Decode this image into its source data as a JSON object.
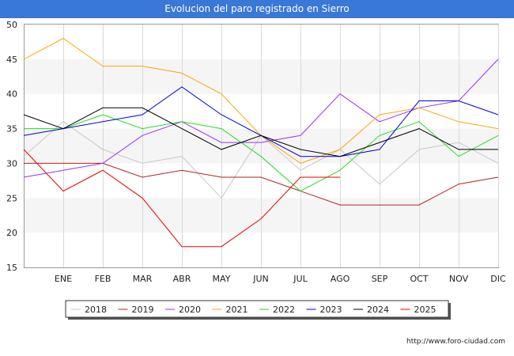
{
  "header": {
    "title": "Evolucion del paro registrado en Sierro"
  },
  "footer": {
    "source": "http://www.foro-ciudad.com"
  },
  "chart_data": {
    "type": "line",
    "title": "Evolucion del paro registrado en Sierro",
    "xlabel": "",
    "ylabel": "",
    "categories": [
      "DIC_prev",
      "ENE",
      "FEB",
      "MAR",
      "ABR",
      "MAY",
      "JUN",
      "JUL",
      "AGO",
      "SEP",
      "OCT",
      "NOV",
      "DIC"
    ],
    "xtick_labels": [
      "ENE",
      "FEB",
      "MAR",
      "ABR",
      "MAY",
      "JUN",
      "JUL",
      "AGO",
      "SEP",
      "OCT",
      "NOV",
      "DIC"
    ],
    "yticks": [
      15,
      20,
      25,
      30,
      35,
      40,
      45,
      50
    ],
    "ylim": [
      15,
      50
    ],
    "grid": true,
    "legend_position": "bottom",
    "series": [
      {
        "name": "2018",
        "color": "#c8c8c8",
        "values": [
          31,
          36,
          32,
          30,
          31,
          25,
          34,
          29,
          32,
          27,
          32,
          33,
          30
        ]
      },
      {
        "name": "2019",
        "color": "#b22222",
        "values": [
          30,
          30,
          30,
          28,
          29,
          28,
          28,
          26,
          24,
          24,
          24,
          27,
          28
        ]
      },
      {
        "name": "2020",
        "color": "#9b30ff",
        "values": [
          28,
          29,
          30,
          34,
          36,
          33,
          33,
          34,
          40,
          36,
          38,
          39,
          45
        ]
      },
      {
        "name": "2021",
        "color": "#ffa500",
        "values": [
          45,
          48,
          44,
          44,
          43,
          40,
          34,
          30,
          32,
          37,
          38,
          36,
          35
        ]
      },
      {
        "name": "2022",
        "color": "#22dd22",
        "values": [
          35,
          35,
          37,
          35,
          36,
          35,
          31,
          26,
          29,
          34,
          36,
          31,
          34
        ]
      },
      {
        "name": "2023",
        "color": "#0000dd",
        "values": [
          34,
          35,
          36,
          37,
          41,
          37,
          34,
          31,
          31,
          32,
          39,
          39,
          37
        ]
      },
      {
        "name": "2024",
        "color": "#000000",
        "values": [
          37,
          35,
          38,
          38,
          35,
          32,
          34,
          32,
          31,
          33,
          35,
          32,
          32
        ]
      },
      {
        "name": "2025",
        "color": "#ee0000",
        "values": [
          32,
          26,
          29,
          25,
          18,
          18,
          22,
          28,
          28,
          null,
          null,
          null,
          null
        ]
      }
    ]
  }
}
